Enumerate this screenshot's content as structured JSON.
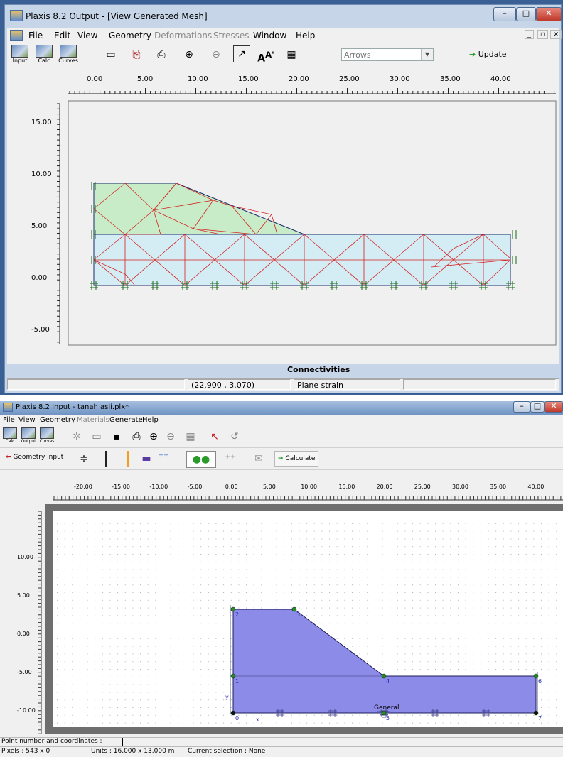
{
  "output_window": {
    "title": "Plaxis 8.2 Output - [View Generated Mesh]",
    "menu": [
      {
        "label": "File",
        "enabled": true
      },
      {
        "label": "Edit",
        "enabled": true
      },
      {
        "label": "View",
        "enabled": true
      },
      {
        "label": "Geometry",
        "enabled": true
      },
      {
        "label": "Deformations",
        "enabled": false
      },
      {
        "label": "Stresses",
        "enabled": false
      },
      {
        "label": "Window",
        "enabled": true
      },
      {
        "label": "Help",
        "enabled": true
      }
    ],
    "toolbar": {
      "input_label": "Input",
      "calc_label": "Calc",
      "curves_label": "Curves",
      "display_select_value": "Arrows",
      "update_label": "Update"
    },
    "ruler_x": [
      "0.00",
      "5.00",
      "10.00",
      "15.00",
      "20.00",
      "25.00",
      "30.00",
      "35.00",
      "40.00"
    ],
    "ruler_y": [
      "15.00",
      "10.00",
      "5.00",
      "0.00",
      "-5.00"
    ],
    "canvas_caption": "Connectivities",
    "status": {
      "coords": "(22.900 , 3.070)",
      "mode": "Plane strain"
    }
  },
  "input_window": {
    "title": "Plaxis 8.2 Input - tanah asli.plx*",
    "menu": [
      {
        "label": "File",
        "enabled": true
      },
      {
        "label": "View",
        "enabled": true
      },
      {
        "label": "Geometry",
        "enabled": true
      },
      {
        "label": "Materials",
        "enabled": false
      },
      {
        "label": "Generate",
        "enabled": true
      },
      {
        "label": "Help",
        "enabled": true
      }
    ],
    "toolbar": {
      "calc_label": "Calc",
      "output_label": "Output",
      "curves_label": "Curves",
      "geometry_input_label": "Geometry input",
      "calculate_label": "Calculate"
    },
    "ruler_x": [
      "-20.00",
      "-15.00",
      "-10.00",
      "-5.00",
      "0.00",
      "5.00",
      "10.00",
      "15.00",
      "20.00",
      "25.00",
      "30.00",
      "35.00",
      "40.00"
    ],
    "ruler_y": [
      "10.00",
      "5.00",
      "0.00",
      "-5.00",
      "-10.00"
    ],
    "point_labels": [
      "0",
      "1",
      "2",
      "3",
      "4",
      "5",
      "6",
      "7"
    ],
    "axis_labels": {
      "x": "x",
      "y": "y"
    },
    "general_label": "General",
    "status_prompt": "Point number and coordinates :",
    "status": {
      "pixels": "Pixels : 543 x 0",
      "units": "Units : 16.000 x 13.000 m",
      "selection": "Current selection : None"
    }
  },
  "colors": {
    "upper_soil": "#c8ecc8",
    "lower_soil": "#d4ecf4",
    "mesh_line": "#d42020",
    "cluster_fill": "#8c8ce8",
    "point": "#2a8a2a"
  }
}
